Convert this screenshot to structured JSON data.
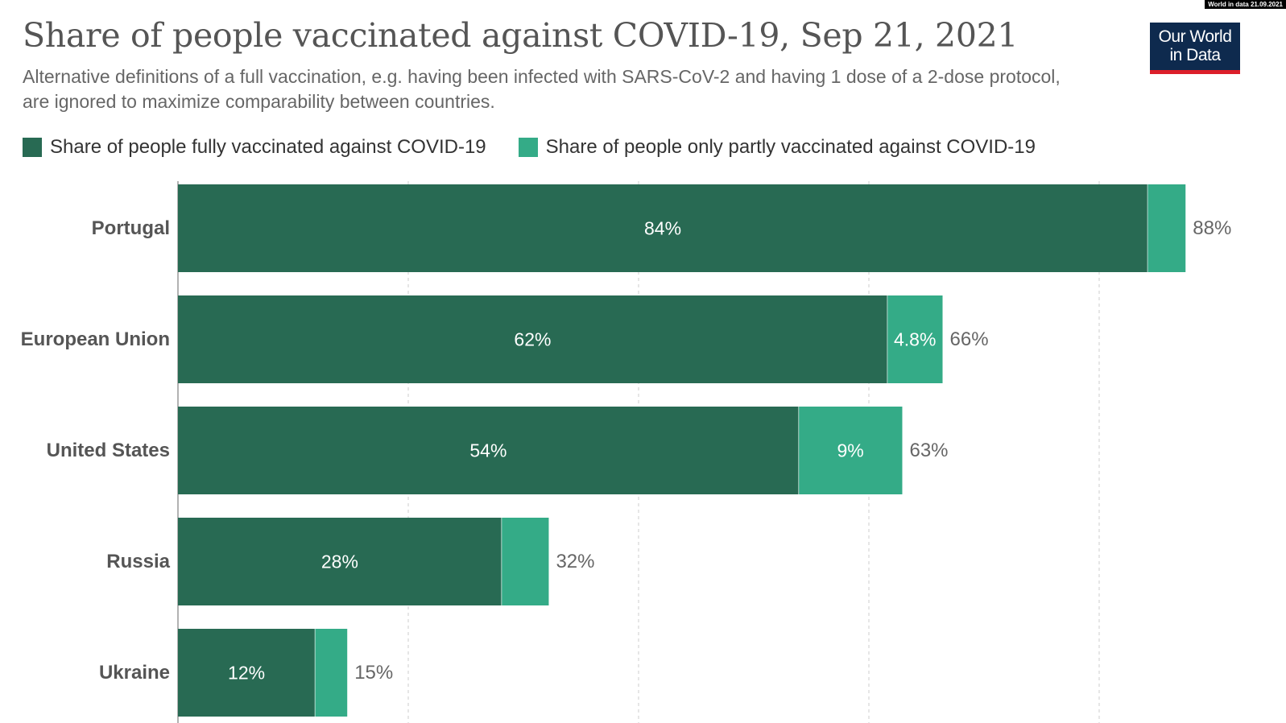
{
  "header": {
    "title": "Share of people vaccinated against COVID-19, Sep 21, 2021",
    "subtitle": "Alternative definitions of a full vaccination, e.g. having been infected with SARS-CoV-2 and having 1 dose of a 2-dose protocol, are ignored to maximize comparability between countries."
  },
  "logo": {
    "line1": "Our World",
    "line2": "in Data",
    "bg_color": "#0e2a4e",
    "accent_color": "#dc1f2a"
  },
  "stamp": {
    "text": "World in data 21.09.2021"
  },
  "colors": {
    "fully": "#286a53",
    "partly": "#34ab87",
    "gridline": "#cccccc",
    "axis": "#666666"
  },
  "chart_data": {
    "type": "bar",
    "orientation": "horizontal",
    "stacked": true,
    "title": "Share of people vaccinated against COVID-19, Sep 21, 2021",
    "subtitle": "Alternative definitions of a full vaccination, e.g. having been infected with SARS-CoV-2 and having 1 dose of a 2-dose protocol, are ignored to maximize comparability between countries.",
    "xlim": [
      0,
      100
    ],
    "grid": true,
    "legend_position": "top-left",
    "categories": [
      "Portugal",
      "European Union",
      "United States",
      "Russia",
      "Ukraine"
    ],
    "series": [
      {
        "name": "Share of people fully vaccinated against COVID-19",
        "values": [
          84.2,
          61.6,
          53.9,
          28.1,
          11.9
        ],
        "labels": [
          "84%",
          "62%",
          "54%",
          "28%",
          "12%"
        ]
      },
      {
        "name": "Share of people only partly vaccinated against COVID-19",
        "values": [
          3.3,
          4.8,
          9.0,
          4.1,
          2.8
        ],
        "labels": [
          "",
          "4.8%",
          "9%",
          "",
          ""
        ]
      }
    ],
    "totals": [
      "88%",
      "66%",
      "63%",
      "32%",
      "15%"
    ]
  }
}
